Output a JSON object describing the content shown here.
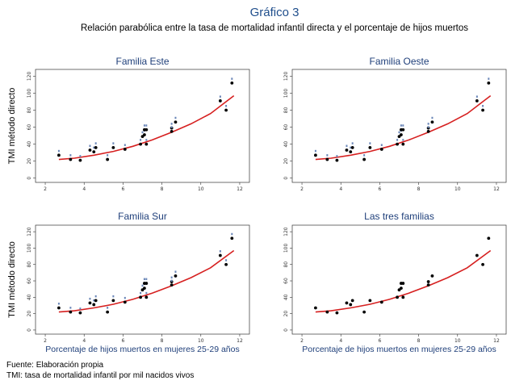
{
  "header": {
    "title": "Gráfico 3",
    "subtitle": "Relación parabólica entre la tasa de mortalidad infantil directa y el porcentaje de hijos muertos"
  },
  "footer": {
    "source": "Fuente: Elaboración propia",
    "note": "TMI: tasa de mortalidad infantil por mil nacidos vivos"
  },
  "colors": {
    "points": "#000000",
    "fit": "#d62020",
    "title": "#1f4e8c",
    "labels": "#6a86b8"
  },
  "chart_data": [
    {
      "type": "scatter",
      "title": "Familia Este",
      "ylabel": "TMI método directo",
      "xlabel": "",
      "xlim": [
        1.5,
        12.5
      ],
      "ylim": [
        -5,
        128
      ],
      "xticks": [
        "2",
        "4",
        "6",
        "8",
        "10",
        "12"
      ],
      "yticks": [
        "0",
        "20",
        "40",
        "60",
        "80",
        "100",
        "120"
      ],
      "point_labels": true,
      "x": [
        2.7,
        3.3,
        3.8,
        4.3,
        4.5,
        4.6,
        5.2,
        5.5,
        6.1,
        6.9,
        7.0,
        7.1,
        7.1,
        7.2,
        7.2,
        8.5,
        8.5,
        8.7,
        11.0,
        11.3,
        11.6
      ],
      "y": [
        27,
        22,
        21,
        33,
        31,
        36,
        22,
        36,
        34,
        40,
        49,
        51,
        57,
        57,
        40,
        59,
        55,
        66,
        91,
        80,
        112
      ],
      "fit": {
        "type": "quadratic",
        "x": [
          2.7,
          3.5,
          4.5,
          5.5,
          6.5,
          7.5,
          8.5,
          9.5,
          10.5,
          11.7
        ],
        "y": [
          22,
          23.5,
          27,
          31.5,
          37.5,
          45,
          54,
          64,
          76,
          97
        ]
      }
    },
    {
      "type": "scatter",
      "title": "Familia Oeste",
      "ylabel": "",
      "xlabel": "",
      "xlim": [
        1.5,
        12.5
      ],
      "ylim": [
        -5,
        128
      ],
      "xticks": [
        "2",
        "4",
        "6",
        "8",
        "10",
        "12"
      ],
      "yticks": [
        "0",
        "20",
        "40",
        "60",
        "80",
        "100",
        "120"
      ],
      "point_labels": true,
      "x": [
        2.7,
        3.3,
        3.8,
        4.3,
        4.5,
        4.6,
        5.2,
        5.5,
        6.1,
        6.9,
        7.0,
        7.1,
        7.1,
        7.2,
        7.2,
        8.5,
        8.5,
        8.7,
        11.0,
        11.3,
        11.6
      ],
      "y": [
        27,
        22,
        21,
        33,
        31,
        36,
        22,
        36,
        34,
        40,
        49,
        51,
        57,
        57,
        40,
        59,
        55,
        66,
        91,
        80,
        112
      ],
      "fit": {
        "type": "quadratic",
        "x": [
          2.7,
          3.5,
          4.5,
          5.5,
          6.5,
          7.5,
          8.5,
          9.5,
          10.5,
          11.7
        ],
        "y": [
          22,
          23.5,
          27,
          31.5,
          37.5,
          45,
          54,
          64,
          76,
          97
        ]
      }
    },
    {
      "type": "scatter",
      "title": "Familia Sur",
      "ylabel": "TMI método directo",
      "xlabel": "Porcentaje de hijos muertos en mujeres 25-29 años",
      "xlim": [
        1.5,
        12.5
      ],
      "ylim": [
        -5,
        128
      ],
      "xticks": [
        "2",
        "4",
        "6",
        "8",
        "10",
        "12"
      ],
      "yticks": [
        "0",
        "20",
        "40",
        "60",
        "80",
        "100",
        "120"
      ],
      "point_labels": true,
      "x": [
        2.7,
        3.3,
        3.8,
        4.3,
        4.5,
        4.6,
        5.2,
        5.5,
        6.1,
        6.9,
        7.0,
        7.1,
        7.1,
        7.2,
        7.2,
        8.5,
        8.5,
        8.7,
        11.0,
        11.3,
        11.6
      ],
      "y": [
        27,
        22,
        21,
        33,
        31,
        36,
        22,
        36,
        34,
        40,
        49,
        51,
        57,
        57,
        40,
        59,
        55,
        66,
        91,
        80,
        112
      ],
      "fit": {
        "type": "quadratic",
        "x": [
          2.7,
          3.5,
          4.5,
          5.5,
          6.5,
          7.5,
          8.5,
          9.5,
          10.5,
          11.7
        ],
        "y": [
          22,
          23.5,
          27,
          31.5,
          37.5,
          45,
          54,
          64,
          76,
          97
        ]
      }
    },
    {
      "type": "scatter",
      "title": "Las tres familias",
      "ylabel": "",
      "xlabel": "Porcentaje de hijos muertos en mujeres 25-29 años",
      "xlim": [
        1.5,
        12.5
      ],
      "ylim": [
        -5,
        128
      ],
      "xticks": [
        "2",
        "4",
        "6",
        "8",
        "10",
        "12"
      ],
      "yticks": [
        "0",
        "20",
        "40",
        "60",
        "80",
        "100",
        "120"
      ],
      "point_labels": false,
      "x": [
        2.7,
        3.3,
        3.8,
        4.3,
        4.5,
        4.6,
        5.2,
        5.5,
        6.1,
        6.9,
        7.0,
        7.1,
        7.1,
        7.2,
        7.2,
        8.5,
        8.5,
        8.7,
        11.0,
        11.3,
        11.6
      ],
      "y": [
        27,
        22,
        21,
        33,
        31,
        36,
        22,
        36,
        34,
        40,
        49,
        51,
        57,
        57,
        40,
        59,
        55,
        66,
        91,
        80,
        112
      ],
      "fit": {
        "type": "quadratic",
        "x": [
          2.7,
          3.5,
          4.5,
          5.5,
          6.5,
          7.5,
          8.5,
          9.5,
          10.5,
          11.7
        ],
        "y": [
          22,
          23.5,
          27,
          31.5,
          37.5,
          45,
          54,
          64,
          76,
          97
        ]
      }
    }
  ]
}
